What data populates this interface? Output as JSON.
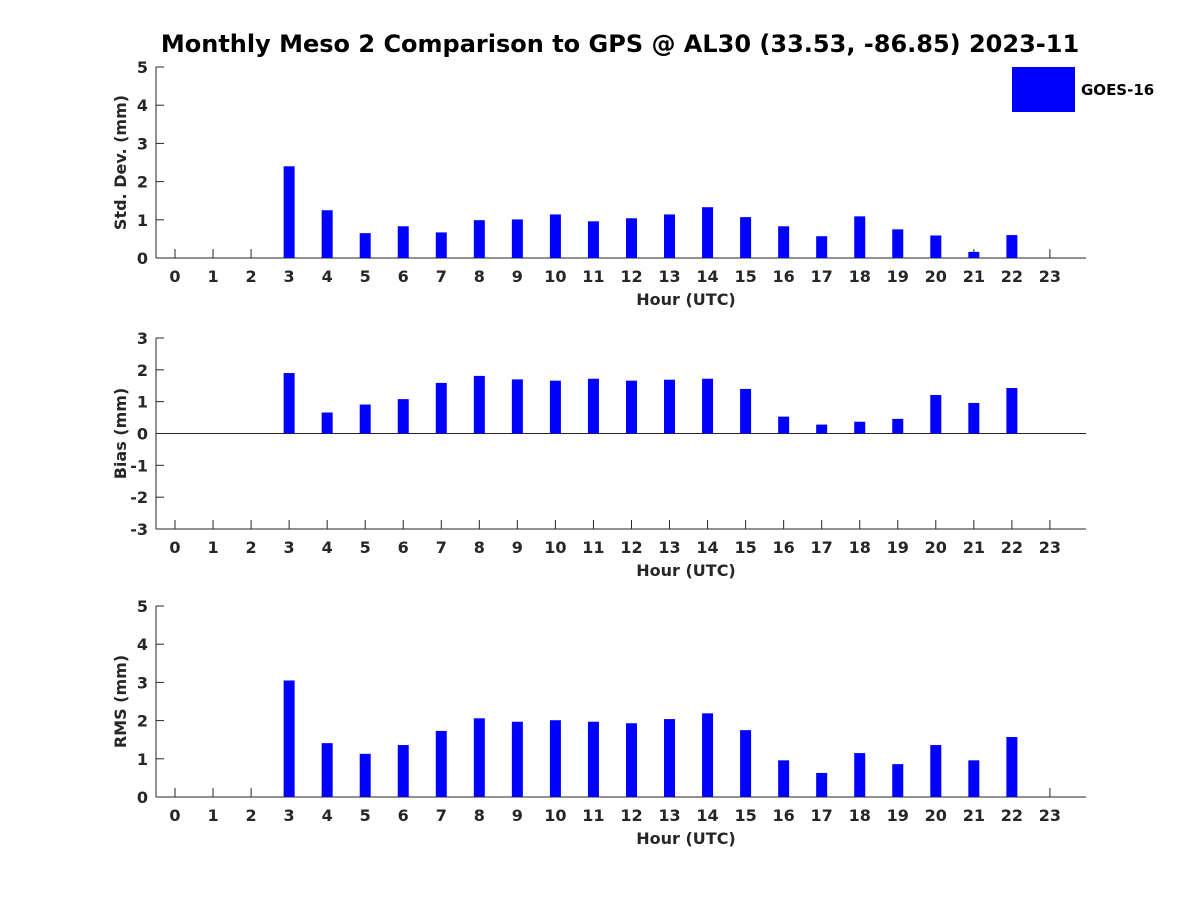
{
  "title": "Monthly Meso 2 Comparison to GPS @ AL30 (33.53, -86.85) 2023-11",
  "colors": {
    "bar": "#0000ff",
    "axis": "#262626",
    "text": "#262626"
  },
  "legend": {
    "label": "GOES-16",
    "placement": "top-right"
  },
  "chart_data": [
    {
      "type": "bar",
      "ylabel": "Std. Dev. (mm)",
      "xlabel": "Hour (UTC)",
      "ylim": [
        0,
        5
      ],
      "yticks": [
        0,
        1,
        2,
        3,
        4,
        5
      ],
      "categories": [
        "0",
        "1",
        "2",
        "3",
        "4",
        "5",
        "6",
        "7",
        "8",
        "9",
        "10",
        "11",
        "12",
        "13",
        "14",
        "15",
        "16",
        "17",
        "18",
        "19",
        "20",
        "21",
        "22",
        "23"
      ],
      "series": [
        {
          "name": "GOES-16",
          "values": [
            null,
            null,
            null,
            2.4,
            1.25,
            0.65,
            0.83,
            0.67,
            0.99,
            1.01,
            1.14,
            0.96,
            1.04,
            1.14,
            1.33,
            1.07,
            0.83,
            0.57,
            1.09,
            0.75,
            0.59,
            0.16,
            0.6,
            null
          ]
        }
      ]
    },
    {
      "type": "bar",
      "ylabel": "Bias (mm)",
      "xlabel": "Hour (UTC)",
      "ylim": [
        -3,
        3
      ],
      "yticks": [
        -3,
        -2,
        -1,
        0,
        1,
        2,
        3
      ],
      "categories": [
        "0",
        "1",
        "2",
        "3",
        "4",
        "5",
        "6",
        "7",
        "8",
        "9",
        "10",
        "11",
        "12",
        "13",
        "14",
        "15",
        "16",
        "17",
        "18",
        "19",
        "20",
        "21",
        "22",
        "23"
      ],
      "series": [
        {
          "name": "GOES-16",
          "values": [
            null,
            null,
            null,
            1.9,
            0.66,
            0.91,
            1.08,
            1.59,
            1.81,
            1.7,
            1.66,
            1.72,
            1.66,
            1.69,
            1.72,
            1.4,
            0.53,
            0.28,
            0.37,
            0.46,
            1.21,
            0.96,
            1.43,
            null
          ]
        }
      ]
    },
    {
      "type": "bar",
      "ylabel": "RMS (mm)",
      "xlabel": "Hour (UTC)",
      "ylim": [
        0,
        5
      ],
      "yticks": [
        0,
        1,
        2,
        3,
        4,
        5
      ],
      "categories": [
        "0",
        "1",
        "2",
        "3",
        "4",
        "5",
        "6",
        "7",
        "8",
        "9",
        "10",
        "11",
        "12",
        "13",
        "14",
        "15",
        "16",
        "17",
        "18",
        "19",
        "20",
        "21",
        "22",
        "23"
      ],
      "series": [
        {
          "name": "GOES-16",
          "values": [
            null,
            null,
            null,
            3.05,
            1.41,
            1.13,
            1.36,
            1.73,
            2.06,
            1.97,
            2.01,
            1.97,
            1.93,
            2.04,
            2.19,
            1.75,
            0.96,
            0.63,
            1.15,
            0.86,
            1.36,
            0.96,
            1.57,
            null
          ]
        }
      ]
    }
  ]
}
